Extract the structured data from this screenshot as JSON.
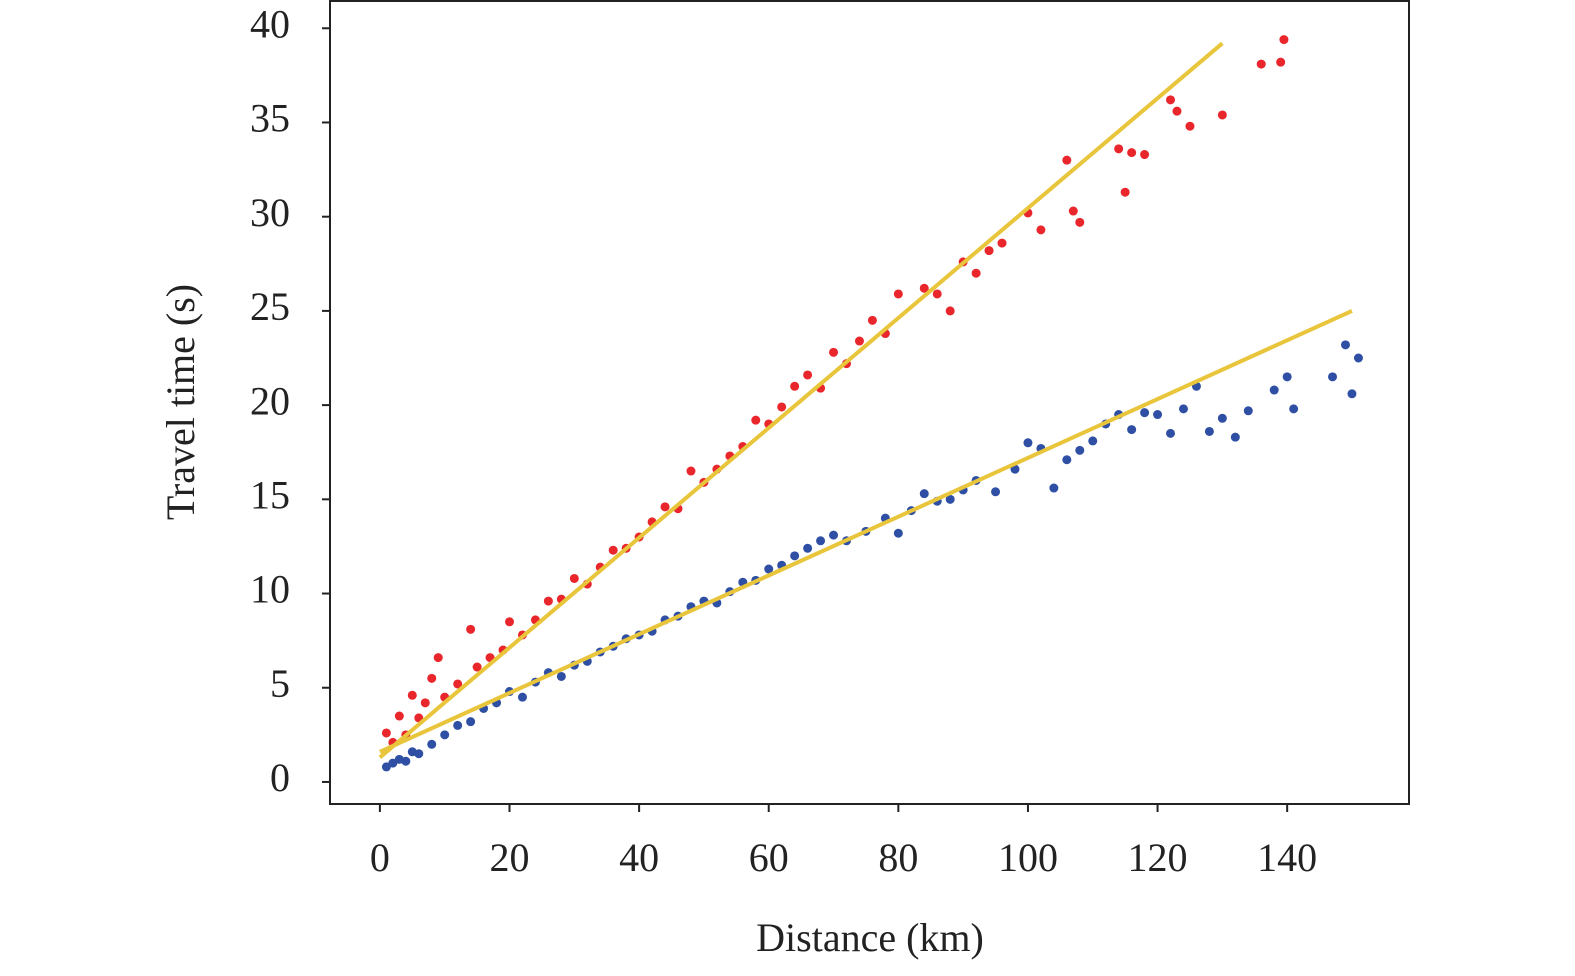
{
  "chart_data": {
    "type": "scatter",
    "xlabel": "Distance (km)",
    "ylabel": "Travel time (s)",
    "xlim": [
      -7.7,
      158.8
    ],
    "ylim": [
      -1.17,
      41.5
    ],
    "xticks": [
      0,
      20,
      40,
      60,
      80,
      100,
      120,
      140
    ],
    "yticks": [
      0,
      5,
      10,
      15,
      20,
      25,
      30,
      35,
      40
    ],
    "grid": false,
    "series": [
      {
        "type": "scatter",
        "color": "#e8262b",
        "x": [
          1,
          2,
          3,
          4,
          5,
          6,
          7,
          8,
          9,
          10,
          12,
          14,
          15,
          17,
          19,
          20,
          22,
          24,
          26,
          28,
          30,
          32,
          34,
          36,
          38,
          40,
          42,
          44,
          46,
          48,
          50,
          52,
          54,
          56,
          58,
          60,
          62,
          64,
          66,
          68,
          70,
          72,
          74,
          76,
          78,
          80,
          84,
          86,
          88,
          90,
          92,
          94,
          96,
          100,
          102,
          106,
          107,
          108,
          114,
          115,
          116,
          118,
          122,
          123,
          125,
          130,
          136,
          139,
          139.5
        ],
        "values": [
          2.6,
          2.1,
          3.5,
          2.5,
          4.6,
          3.4,
          4.2,
          5.5,
          6.6,
          4.5,
          5.2,
          8.1,
          6.1,
          6.6,
          7.0,
          8.5,
          7.8,
          8.6,
          9.6,
          9.7,
          10.8,
          10.5,
          11.4,
          12.3,
          12.4,
          13.0,
          13.8,
          14.6,
          14.5,
          16.5,
          15.9,
          16.6,
          17.3,
          17.8,
          19.2,
          19.0,
          19.9,
          21.0,
          21.6,
          20.9,
          22.8,
          22.2,
          23.4,
          24.5,
          23.8,
          25.9,
          26.2,
          25.9,
          25.0,
          27.6,
          27.0,
          28.2,
          28.6,
          30.2,
          29.3,
          33.0,
          30.3,
          29.7,
          33.6,
          31.3,
          33.4,
          33.3,
          36.2,
          35.6,
          34.8,
          35.4,
          38.1,
          38.2,
          39.4
        ]
      },
      {
        "type": "scatter",
        "color": "#2e4fa3",
        "x": [
          1,
          2,
          3,
          4,
          5,
          6,
          8,
          10,
          12,
          14,
          16,
          18,
          20,
          22,
          24,
          26,
          28,
          30,
          32,
          34,
          36,
          38,
          40,
          42,
          44,
          46,
          48,
          50,
          52,
          54,
          56,
          58,
          60,
          62,
          64,
          66,
          68,
          70,
          72,
          75,
          78,
          80,
          82,
          84,
          86,
          88,
          90,
          92,
          95,
          98,
          100,
          102,
          104,
          106,
          108,
          110,
          112,
          114,
          116,
          118,
          120,
          122,
          124,
          126,
          128,
          130,
          132,
          134,
          138,
          140,
          141,
          147,
          149,
          150,
          151
        ],
        "values": [
          0.8,
          1.0,
          1.2,
          1.1,
          1.6,
          1.5,
          2.0,
          2.5,
          3.0,
          3.2,
          3.9,
          4.2,
          4.8,
          4.5,
          5.3,
          5.8,
          5.6,
          6.2,
          6.4,
          6.9,
          7.2,
          7.6,
          7.8,
          8.0,
          8.6,
          8.8,
          9.3,
          9.6,
          9.5,
          10.1,
          10.6,
          10.7,
          11.3,
          11.5,
          12.0,
          12.4,
          12.8,
          13.1,
          12.8,
          13.3,
          14.0,
          13.2,
          14.4,
          15.3,
          14.9,
          15.0,
          15.5,
          16.0,
          15.4,
          16.6,
          18.0,
          17.7,
          15.6,
          17.1,
          17.6,
          18.1,
          19.0,
          19.5,
          18.7,
          19.6,
          19.5,
          18.5,
          19.8,
          21.0,
          18.6,
          19.3,
          18.3,
          19.7,
          20.8,
          21.5,
          19.8,
          21.5,
          23.2,
          20.6,
          22.5
        ]
      },
      {
        "type": "line",
        "color": "#e8c53a",
        "x": [
          0,
          130
        ],
        "values": [
          1.3,
          39.2
        ]
      },
      {
        "type": "line",
        "color": "#e8c53a",
        "x": [
          0,
          150
        ],
        "values": [
          1.6,
          25.0
        ]
      }
    ]
  }
}
